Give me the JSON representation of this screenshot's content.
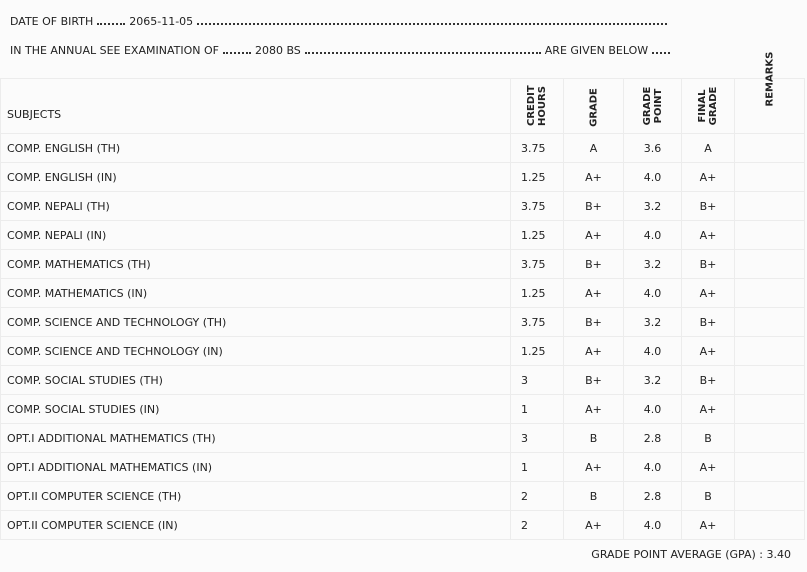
{
  "header": {
    "dob_label": "DATE OF BIRTH",
    "dob": "2065-11-05",
    "exam_label": "IN THE ANNUAL SEE EXAMINATION OF",
    "exam_year": "2080 BS",
    "exam_suffix": "ARE GIVEN BELOW"
  },
  "table": {
    "columns": [
      "SUBJECTS",
      "CREDIT HOURS",
      "GRADE",
      "GRADE POINT",
      "FINAL GRADE",
      "REMARKS"
    ],
    "rows": [
      [
        "COMP. ENGLISH (TH)",
        "3.75",
        "A",
        "3.6",
        "A"
      ],
      [
        "COMP. ENGLISH (IN)",
        "1.25",
        "A+",
        "4.0",
        "A+"
      ],
      [
        "COMP. NEPALI (TH)",
        "3.75",
        "B+",
        "3.2",
        "B+"
      ],
      [
        "COMP. NEPALI (IN)",
        "1.25",
        "A+",
        "4.0",
        "A+"
      ],
      [
        "COMP. MATHEMATICS (TH)",
        "3.75",
        "B+",
        "3.2",
        "B+"
      ],
      [
        "COMP. MATHEMATICS (IN)",
        "1.25",
        "A+",
        "4.0",
        "A+"
      ],
      [
        "COMP. SCIENCE AND TECHNOLOGY (TH)",
        "3.75",
        "B+",
        "3.2",
        "B+"
      ],
      [
        "COMP. SCIENCE AND TECHNOLOGY (IN)",
        "1.25",
        "A+",
        "4.0",
        "A+"
      ],
      [
        "COMP. SOCIAL STUDIES (TH)",
        "3",
        "B+",
        "3.2",
        "B+"
      ],
      [
        "COMP. SOCIAL STUDIES (IN)",
        "1",
        "A+",
        "4.0",
        "A+"
      ],
      [
        "OPT.I ADDITIONAL MATHEMATICS (TH)",
        "3",
        "B",
        "2.8",
        "B"
      ],
      [
        "OPT.I ADDITIONAL MATHEMATICS (IN)",
        "1",
        "A+",
        "4.0",
        "A+"
      ],
      [
        "OPT.II COMPUTER SCIENCE (TH)",
        "2",
        "B",
        "2.8",
        "B"
      ],
      [
        "OPT.II COMPUTER SCIENCE (IN)",
        "2",
        "A+",
        "4.0",
        "A+"
      ]
    ]
  },
  "footer": {
    "gpa_label": "GRADE POINT AVERAGE (GPA) :",
    "gpa": "3.40"
  }
}
